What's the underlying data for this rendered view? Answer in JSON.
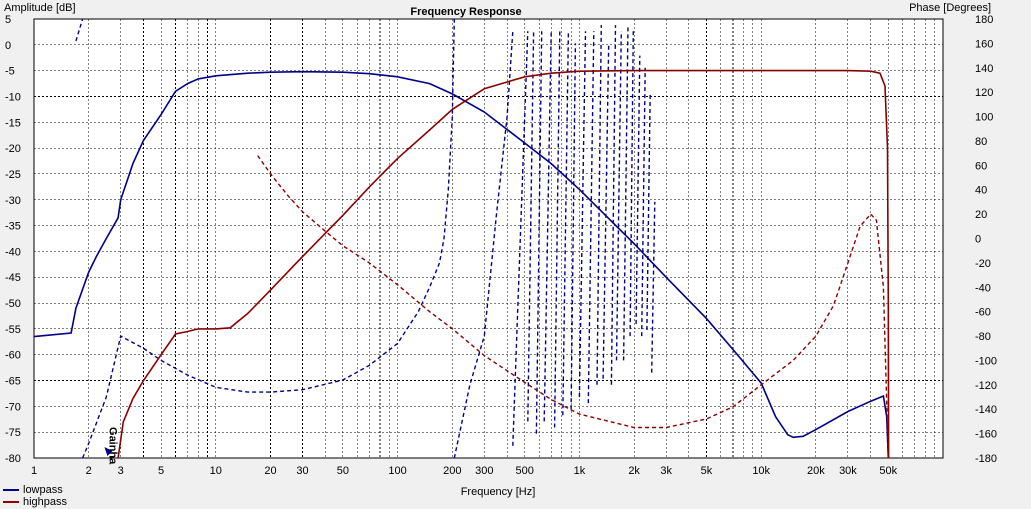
{
  "chart_data": {
    "type": "line",
    "title": "Frequency Response",
    "xlabel": "Frequency [Hz]",
    "ylabel_left": "Amplitude [dB]",
    "ylabel_right": "Phase [Degrees]",
    "xscale": "log",
    "xlim": [
      1,
      100000
    ],
    "ylim_left": [
      -80,
      5
    ],
    "ylim_right": [
      -180,
      180
    ],
    "grid": true,
    "x_tick_labels": [
      {
        "x": 1,
        "label": "1"
      },
      {
        "x": 2,
        "label": "2"
      },
      {
        "x": 3,
        "label": "3"
      },
      {
        "x": 5,
        "label": "5"
      },
      {
        "x": 10,
        "label": "10"
      },
      {
        "x": 20,
        "label": "20"
      },
      {
        "x": 30,
        "label": "30"
      },
      {
        "x": 50,
        "label": "50"
      },
      {
        "x": 100,
        "label": "100"
      },
      {
        "x": 200,
        "label": "200"
      },
      {
        "x": 300,
        "label": "300"
      },
      {
        "x": 500,
        "label": "500"
      },
      {
        "x": 1000,
        "label": "1k"
      },
      {
        "x": 2000,
        "label": "2k"
      },
      {
        "x": 3000,
        "label": "3k"
      },
      {
        "x": 5000,
        "label": "5k"
      },
      {
        "x": 10000,
        "label": "10k"
      },
      {
        "x": 20000,
        "label": "20k"
      },
      {
        "x": 30000,
        "label": "30k"
      },
      {
        "x": 50000,
        "label": "50k"
      }
    ],
    "y_left_ticks": [
      5,
      0,
      -5,
      -10,
      -15,
      -20,
      -25,
      -30,
      -35,
      -40,
      -45,
      -50,
      -55,
      -60,
      -65,
      -70,
      -75,
      -80
    ],
    "y_right_ticks": [
      180,
      160,
      140,
      120,
      100,
      80,
      60,
      40,
      20,
      0,
      -20,
      -40,
      -60,
      -80,
      -100,
      -120,
      -140,
      -160,
      -180
    ],
    "series": [
      {
        "name": "lowpass",
        "color": "#00008b",
        "amplitude": [
          [
            1,
            -56.5
          ],
          [
            1.6,
            -55.8
          ],
          [
            1.7,
            -51
          ],
          [
            2,
            -44
          ],
          [
            2.2,
            -41
          ],
          [
            2.5,
            -37.5
          ],
          [
            2.9,
            -33.5
          ],
          [
            3,
            -30
          ],
          [
            3.5,
            -23
          ],
          [
            4,
            -18.5
          ],
          [
            5,
            -13.5
          ],
          [
            6,
            -9
          ],
          [
            7,
            -7.5
          ],
          [
            8,
            -6.6
          ],
          [
            10,
            -6
          ],
          [
            15,
            -5.5
          ],
          [
            20,
            -5.3
          ],
          [
            30,
            -5.2
          ],
          [
            50,
            -5.3
          ],
          [
            70,
            -5.6
          ],
          [
            100,
            -6.2
          ],
          [
            150,
            -7.5
          ],
          [
            200,
            -9.5
          ],
          [
            300,
            -13
          ],
          [
            500,
            -19
          ],
          [
            700,
            -23
          ],
          [
            1000,
            -28
          ],
          [
            2000,
            -38.5
          ],
          [
            3000,
            -45
          ],
          [
            5000,
            -53
          ],
          [
            7000,
            -59
          ],
          [
            10000,
            -65.5
          ],
          [
            12000,
            -72
          ],
          [
            14000,
            -75.5
          ],
          [
            15000,
            -76
          ],
          [
            17000,
            -75.8
          ],
          [
            20000,
            -74.5
          ],
          [
            30000,
            -71
          ],
          [
            40000,
            -69
          ],
          [
            47000,
            -68
          ],
          [
            49000,
            -72
          ],
          [
            50000,
            -80
          ]
        ],
        "phase": [
          [
            1.7,
            162,
            "gap"
          ],
          [
            1.85,
            180
          ],
          [
            1.85,
            -180,
            "gap"
          ],
          [
            2,
            -168
          ],
          [
            2.5,
            -130
          ],
          [
            3,
            -80
          ],
          [
            4,
            -90
          ],
          [
            5,
            -100
          ],
          [
            7,
            -112
          ],
          [
            10,
            -122
          ],
          [
            15,
            -126
          ],
          [
            20,
            -126
          ],
          [
            30,
            -124
          ],
          [
            50,
            -116
          ],
          [
            70,
            -104
          ],
          [
            100,
            -86
          ],
          [
            130,
            -60
          ],
          [
            150,
            -40
          ],
          [
            170,
            -20
          ],
          [
            180,
            0
          ],
          [
            190,
            40
          ],
          [
            200,
            100
          ],
          [
            205,
            180
          ],
          [
            205,
            -180,
            "gap"
          ],
          [
            250,
            -120
          ],
          [
            300,
            -80
          ],
          [
            350,
            20
          ],
          [
            400,
            100
          ],
          [
            430,
            170
          ],
          [
            430,
            -170,
            "gap"
          ],
          [
            520,
            170
          ],
          [
            520,
            -150,
            "gap"
          ],
          [
            560,
            170
          ],
          [
            580,
            -160,
            "gap"
          ],
          [
            620,
            170
          ],
          [
            640,
            -150,
            "gap"
          ],
          [
            700,
            170
          ],
          [
            730,
            -155,
            "gap"
          ],
          [
            780,
            170
          ],
          [
            810,
            -145,
            "gap"
          ],
          [
            870,
            170
          ],
          [
            900,
            -140,
            "gap"
          ],
          [
            950,
            160
          ],
          [
            1000,
            -130,
            "gap"
          ],
          [
            1080,
            170
          ],
          [
            1120,
            -135,
            "gap"
          ],
          [
            1200,
            170
          ],
          [
            1250,
            -120,
            "gap"
          ],
          [
            1320,
            175
          ],
          [
            1350,
            -115,
            "gap"
          ],
          [
            1450,
            160
          ],
          [
            1500,
            -120,
            "gap"
          ],
          [
            1580,
            175
          ],
          [
            1600,
            -100,
            "gap"
          ],
          [
            1700,
            170
          ],
          [
            1750,
            -100,
            "gap"
          ],
          [
            1850,
            175
          ],
          [
            1900,
            -80,
            "gap"
          ],
          [
            1980,
            170
          ],
          [
            2050,
            -70,
            "gap"
          ],
          [
            2150,
            150
          ],
          [
            2200,
            -80,
            "gap"
          ],
          [
            2300,
            140
          ],
          [
            2350,
            -75,
            "gap"
          ],
          [
            2450,
            120
          ],
          [
            2500,
            -110,
            "gap"
          ],
          [
            2600,
            30
          ]
        ]
      },
      {
        "name": "highpass",
        "color": "#8b0000",
        "amplitude": [
          [
            2.9,
            -80
          ],
          [
            3.1,
            -73
          ],
          [
            3.5,
            -68.5
          ],
          [
            4,
            -65
          ],
          [
            5,
            -60
          ],
          [
            6,
            -56
          ],
          [
            7,
            -55.5
          ],
          [
            8,
            -55
          ],
          [
            10,
            -55
          ],
          [
            12,
            -54.8
          ],
          [
            15,
            -52
          ],
          [
            20,
            -47.5
          ],
          [
            30,
            -41
          ],
          [
            50,
            -33
          ],
          [
            70,
            -27.5
          ],
          [
            100,
            -22
          ],
          [
            150,
            -16.5
          ],
          [
            200,
            -12.5
          ],
          [
            300,
            -8.5
          ],
          [
            500,
            -6.2
          ],
          [
            700,
            -5.5
          ],
          [
            1000,
            -5.1
          ],
          [
            2000,
            -5
          ],
          [
            5000,
            -5
          ],
          [
            10000,
            -5
          ],
          [
            20000,
            -5
          ],
          [
            30000,
            -5
          ],
          [
            40000,
            -5.1
          ],
          [
            45000,
            -5.5
          ],
          [
            48000,
            -8
          ],
          [
            49500,
            -20
          ],
          [
            50000,
            -50
          ],
          [
            50200,
            -80
          ]
        ],
        "phase": [
          [
            17,
            68
          ],
          [
            20,
            53
          ],
          [
            25,
            35
          ],
          [
            30,
            22
          ],
          [
            40,
            6
          ],
          [
            50,
            -6
          ],
          [
            70,
            -20
          ],
          [
            100,
            -38
          ],
          [
            150,
            -60
          ],
          [
            200,
            -74
          ],
          [
            300,
            -96
          ],
          [
            500,
            -118
          ],
          [
            700,
            -132
          ],
          [
            1000,
            -144
          ],
          [
            2000,
            -155
          ],
          [
            3000,
            -155
          ],
          [
            5000,
            -148
          ],
          [
            7000,
            -138
          ],
          [
            10000,
            -120
          ],
          [
            15000,
            -100
          ],
          [
            20000,
            -80
          ],
          [
            25000,
            -55
          ],
          [
            30000,
            -20
          ],
          [
            35000,
            10
          ],
          [
            40000,
            20
          ],
          [
            43000,
            15
          ],
          [
            47000,
            -40
          ],
          [
            50000,
            -180
          ]
        ]
      }
    ],
    "annotations": [
      {
        "text": "Gainha",
        "x": 2.6,
        "y_dB": -74,
        "rotation": 90,
        "color": "#00008b"
      }
    ]
  }
}
